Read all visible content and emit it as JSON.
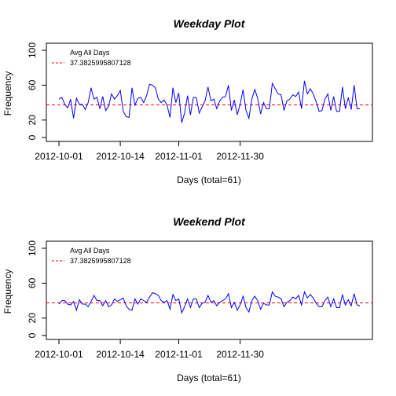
{
  "chart_data": [
    {
      "type": "line",
      "title": "Weekday Plot",
      "xlabel": "Days (total=61)",
      "ylabel": "Frequency",
      "ylim": [
        0,
        100
      ],
      "yticks": [
        0,
        20,
        60,
        100
      ],
      "xticks": [
        "2012-10-01",
        "2012-10-14",
        "2012-11-01",
        "2012-11-30"
      ],
      "legend": {
        "title": "Avg All Days",
        "entry": "37.3825995807128",
        "placement": "top-left"
      },
      "reference_line": {
        "value": 37.3825995807128,
        "color": "#ff0000",
        "style": "dashed"
      },
      "series": [
        {
          "color": "#0000ff",
          "values": [
            44,
            46,
            38,
            34,
            44,
            22,
            45,
            38,
            38,
            32,
            40,
            57,
            44,
            46,
            33,
            47,
            31,
            36,
            50,
            44,
            48,
            54,
            30,
            24,
            23,
            57,
            37,
            45,
            46,
            40,
            48,
            61,
            60,
            57,
            44,
            40,
            43,
            37,
            23,
            57,
            40,
            51,
            17,
            28,
            48,
            26,
            46,
            46,
            28,
            35,
            42,
            58,
            42,
            44,
            33,
            42,
            46,
            47,
            60,
            31,
            43,
            26,
            38,
            55,
            31,
            22,
            44,
            55,
            45,
            27,
            40,
            33,
            33,
            62,
            56,
            50,
            49,
            31,
            42,
            44,
            49,
            47,
            52,
            33,
            65,
            50,
            56,
            50,
            41,
            30,
            31,
            44,
            50,
            31,
            47,
            30,
            30,
            58,
            33,
            46,
            32,
            60,
            33,
            33
          ]
        }
      ]
    },
    {
      "type": "line",
      "title": "Weekend  Plot",
      "xlabel": "Days (total=61)",
      "ylabel": "Frequency",
      "ylim": [
        0,
        100
      ],
      "yticks": [
        0,
        20,
        60,
        100
      ],
      "xticks": [
        "2012-10-01",
        "2012-10-14",
        "2012-11-01",
        "2012-11-30"
      ],
      "legend": {
        "title": "Avg All Days",
        "entry": "37.3825995807128",
        "placement": "top-left"
      },
      "reference_line": {
        "value": 37.3825995807128,
        "color": "#ff0000",
        "style": "dashed"
      },
      "series": [
        {
          "color": "#0000ff",
          "values": [
            36,
            40,
            40,
            36,
            35,
            39,
            29,
            41,
            36,
            36,
            33,
            39,
            46,
            40,
            40,
            34,
            40,
            33,
            35,
            42,
            39,
            41,
            43,
            34,
            30,
            29,
            42,
            36,
            42,
            40,
            38,
            44,
            49,
            48,
            46,
            40,
            38,
            40,
            30,
            47,
            40,
            42,
            26,
            33,
            42,
            32,
            42,
            42,
            32,
            37,
            38,
            46,
            38,
            40,
            34,
            38,
            40,
            42,
            48,
            32,
            38,
            29,
            35,
            45,
            32,
            27,
            40,
            45,
            40,
            30,
            37,
            35,
            35,
            50,
            45,
            44,
            42,
            33,
            38,
            40,
            44,
            42,
            46,
            35,
            50,
            43,
            47,
            43,
            37,
            33,
            33,
            40,
            44,
            33,
            42,
            32,
            32,
            47,
            35,
            41,
            34,
            48,
            35,
            34
          ]
        }
      ]
    }
  ]
}
